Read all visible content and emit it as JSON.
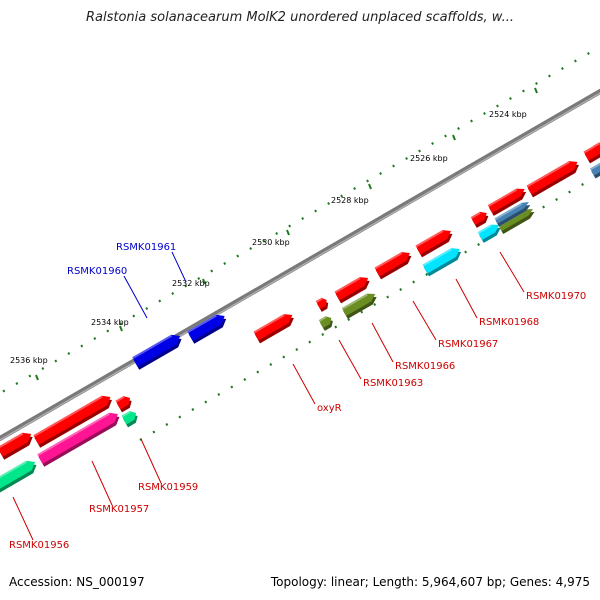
{
  "title": "Ralstonia solanacearum MolK2 unordered unplaced scaffolds, w...",
  "footer": {
    "accession": "Accession: NS_000197",
    "info": "Topology: linear; Length: 5,964,607 bp; Genes: 4,975"
  },
  "colors": {
    "backbone": "#7a7a7a",
    "tick": "#1f7a1f",
    "red": "#ff0000",
    "blue": "#0000e6",
    "cyan": "#00e5ff",
    "olive": "#6b8e23",
    "pink": "#ff1493",
    "green": "#00e68a",
    "steel": "#4682b4",
    "label_red": "#cc0000",
    "label_blue": "#0000cc"
  },
  "scale_labels": [
    "2524 kbp",
    "2526 kbp",
    "2528 kbp",
    "2530 kbp",
    "2532 kbp",
    "2534 kbp",
    "2536 kbp"
  ],
  "gene_labels": [
    {
      "text": "RSMK01961",
      "color": "blue"
    },
    {
      "text": "RSMK01960",
      "color": "blue"
    },
    {
      "text": "RSMK01970",
      "color": "red"
    },
    {
      "text": "RSMK01968",
      "color": "red"
    },
    {
      "text": "RSMK01967",
      "color": "red"
    },
    {
      "text": "RSMK01966",
      "color": "red"
    },
    {
      "text": "RSMK01963",
      "color": "red"
    },
    {
      "text": "oxyR",
      "color": "red"
    },
    {
      "text": "RSMK01959",
      "color": "red"
    },
    {
      "text": "RSMK01957",
      "color": "red"
    },
    {
      "text": "RSMK01956",
      "color": "red"
    }
  ],
  "genes": [
    {
      "color": "red"
    },
    {
      "color": "red"
    },
    {
      "color": "red"
    },
    {
      "color": "red"
    },
    {
      "color": "red"
    },
    {
      "color": "red"
    },
    {
      "color": "red"
    },
    {
      "color": "red"
    },
    {
      "color": "red"
    },
    {
      "color": "red"
    },
    {
      "color": "red"
    },
    {
      "color": "red"
    },
    {
      "color": "blue"
    },
    {
      "color": "blue"
    },
    {
      "color": "cyan"
    },
    {
      "color": "cyan"
    },
    {
      "color": "olive"
    },
    {
      "color": "olive"
    },
    {
      "color": "olive"
    },
    {
      "color": "steel"
    },
    {
      "color": "steel"
    },
    {
      "color": "pink"
    },
    {
      "color": "green"
    },
    {
      "color": "green"
    },
    {
      "color": "red"
    }
  ]
}
